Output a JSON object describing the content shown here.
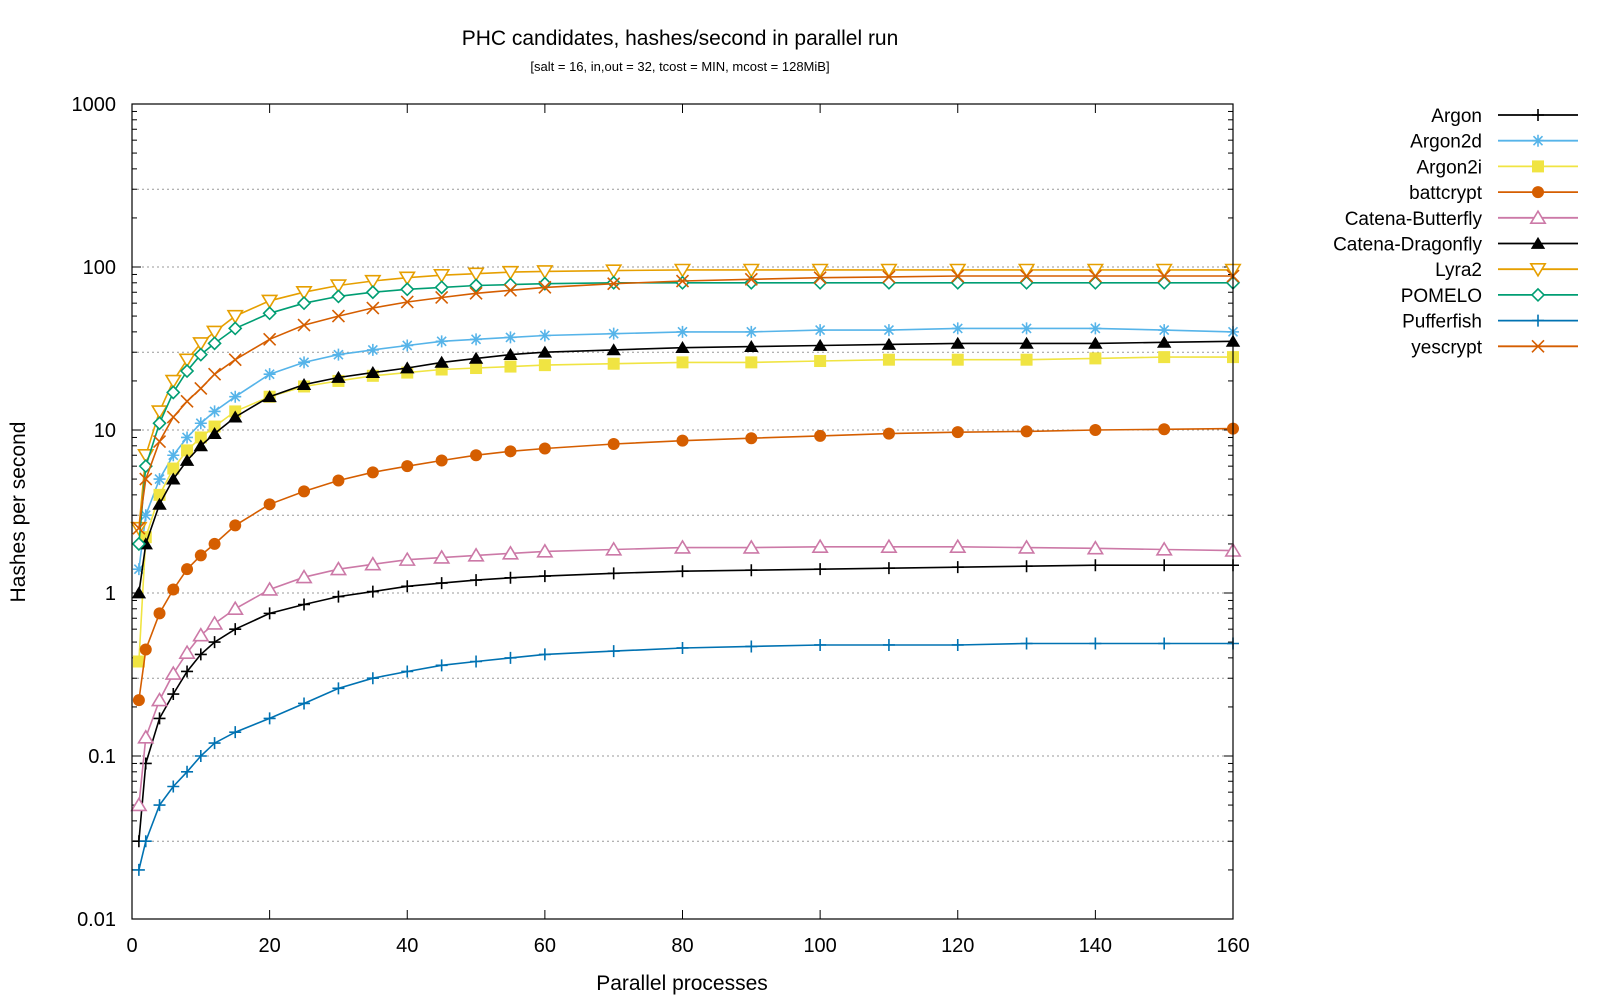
{
  "chart_data": {
    "type": "line",
    "title": "PHC candidates, hashes/second in parallel run",
    "subtitle": "[salt = 16, in,out = 32, tcost = MIN, mcost = 128MiB]",
    "xlabel": "Parallel processes",
    "ylabel": "Hashes per second",
    "xlim": [
      0,
      160
    ],
    "ylim": [
      0.01,
      1000
    ],
    "yscale": "log",
    "grid": "horizontal dotted",
    "legend": "right, outside plot",
    "x_ticks": [
      "0",
      "20",
      "40",
      "60",
      "80",
      "100",
      "120",
      "140",
      "160"
    ],
    "y_ticks": [
      "0.01",
      "0.1",
      "1",
      "10",
      "100",
      "1000"
    ],
    "x": [
      1,
      2,
      4,
      6,
      8,
      10,
      12,
      15,
      20,
      25,
      30,
      35,
      40,
      45,
      50,
      55,
      60,
      70,
      80,
      90,
      100,
      110,
      120,
      130,
      140,
      150,
      160
    ],
    "series": [
      {
        "name": "Argon",
        "color": "#000000",
        "marker": "plus",
        "values": [
          0.03,
          0.09,
          0.17,
          0.24,
          0.33,
          0.42,
          0.5,
          0.6,
          0.75,
          0.85,
          0.95,
          1.02,
          1.1,
          1.15,
          1.2,
          1.24,
          1.27,
          1.32,
          1.36,
          1.38,
          1.4,
          1.42,
          1.44,
          1.46,
          1.48,
          1.48,
          1.48
        ]
      },
      {
        "name": "Argon2d",
        "color": "#56b4e9",
        "marker": "star",
        "values": [
          1.4,
          3.0,
          5.0,
          7.0,
          9.0,
          11.0,
          13.0,
          16.0,
          22.0,
          26.0,
          29.0,
          31.0,
          33.0,
          35.0,
          36.0,
          37.0,
          38.0,
          39.0,
          40.0,
          40.0,
          41.0,
          41.0,
          42.0,
          42.0,
          42.0,
          41.0,
          40.0
        ]
      },
      {
        "name": "Argon2i",
        "color": "#f0e442",
        "marker": "square",
        "values": [
          0.38,
          2.2,
          4.0,
          5.8,
          7.5,
          9.0,
          10.5,
          13.0,
          16.0,
          18.5,
          20.0,
          21.5,
          22.5,
          23.5,
          24.0,
          24.5,
          25.0,
          25.5,
          26.0,
          26.0,
          26.5,
          27.0,
          27.0,
          27.0,
          27.5,
          28.0,
          28.0
        ]
      },
      {
        "name": "battcrypt",
        "color": "#d55e00",
        "marker": "circle",
        "values": [
          0.22,
          0.45,
          0.75,
          1.05,
          1.4,
          1.7,
          2.0,
          2.6,
          3.5,
          4.2,
          4.9,
          5.5,
          6.0,
          6.5,
          7.0,
          7.4,
          7.7,
          8.2,
          8.6,
          8.9,
          9.2,
          9.5,
          9.7,
          9.8,
          10.0,
          10.1,
          10.2
        ]
      },
      {
        "name": "Catena-Butterfly",
        "color": "#cc79a7",
        "marker": "triangle-open",
        "values": [
          0.05,
          0.13,
          0.22,
          0.32,
          0.43,
          0.55,
          0.65,
          0.8,
          1.05,
          1.25,
          1.4,
          1.5,
          1.6,
          1.65,
          1.7,
          1.75,
          1.8,
          1.85,
          1.9,
          1.9,
          1.92,
          1.92,
          1.92,
          1.9,
          1.88,
          1.85,
          1.82
        ]
      },
      {
        "name": "Catena-Dragonfly",
        "color": "#000000",
        "marker": "triangle-filled",
        "values": [
          1.0,
          2.0,
          3.5,
          5.0,
          6.5,
          8.0,
          9.5,
          12.0,
          16.0,
          19.0,
          21.0,
          22.5,
          24.0,
          26.0,
          27.5,
          29.0,
          30.0,
          31.0,
          32.0,
          32.5,
          33.0,
          33.5,
          34.0,
          34.0,
          34.0,
          34.5,
          35.0
        ]
      },
      {
        "name": "Lyra2",
        "color": "#e69f00",
        "marker": "triangle-down-open",
        "values": [
          2.5,
          7.0,
          13.0,
          20.0,
          27.0,
          34.0,
          40.0,
          50.0,
          62.0,
          70.0,
          77.0,
          82.0,
          86.0,
          89.0,
          91.0,
          93.0,
          94.0,
          95.0,
          96.0,
          96.0,
          96.0,
          96.0,
          96.0,
          96.0,
          96.0,
          96.0,
          96.0
        ]
      },
      {
        "name": "POMELO",
        "color": "#009e73",
        "marker": "diamond-open",
        "values": [
          2.0,
          6.0,
          11.0,
          17.0,
          23.0,
          29.0,
          34.0,
          42.0,
          52.0,
          60.0,
          66.0,
          70.0,
          73.0,
          75.0,
          77.0,
          78.0,
          79.0,
          80.0,
          80.0,
          80.0,
          80.0,
          80.0,
          80.0,
          80.0,
          80.0,
          80.0,
          80.0
        ]
      },
      {
        "name": "Pufferfish",
        "color": "#0072b2",
        "marker": "plus",
        "values": [
          0.02,
          0.03,
          0.05,
          0.065,
          0.08,
          0.1,
          0.12,
          0.14,
          0.17,
          0.21,
          0.26,
          0.3,
          0.33,
          0.36,
          0.38,
          0.4,
          0.42,
          0.44,
          0.46,
          0.47,
          0.48,
          0.48,
          0.48,
          0.49,
          0.49,
          0.49,
          0.49
        ]
      },
      {
        "name": "yescrypt",
        "color": "#d55e00",
        "marker": "cross",
        "values": [
          2.5,
          5.0,
          8.5,
          12.0,
          15.0,
          18.0,
          22.0,
          27.0,
          36.0,
          44.0,
          50.0,
          56.0,
          61.0,
          65.0,
          69.0,
          72.0,
          75.0,
          79.0,
          82.0,
          84.0,
          86.0,
          87.0,
          88.0,
          88.0,
          88.0,
          88.0,
          88.0
        ]
      }
    ]
  }
}
